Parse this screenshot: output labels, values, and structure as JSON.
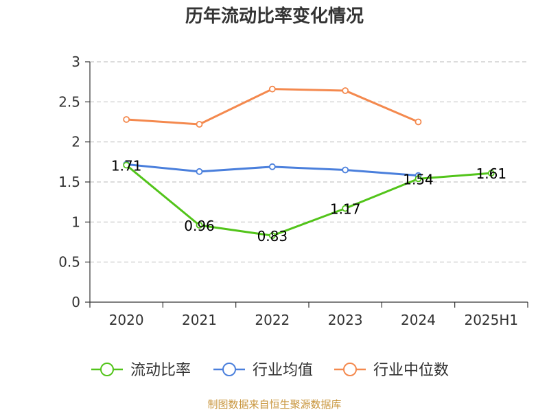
{
  "chart_data": {
    "type": "line",
    "title": "历年流动比率变化情况",
    "categories": [
      "2020",
      "2021",
      "2022",
      "2023",
      "2024",
      "2025H1"
    ],
    "ylim": [
      0,
      3
    ],
    "yticks": [
      "0",
      "0.5",
      "1",
      "1.5",
      "2",
      "2.5",
      "3"
    ],
    "grid": true,
    "legend_position": "bottom",
    "series": [
      {
        "name": "流动比率",
        "color": "#52c41a",
        "values": [
          1.71,
          0.96,
          0.83,
          1.17,
          1.54,
          1.61
        ],
        "labels": [
          "1.71",
          "0.96",
          "0.83",
          "1.17",
          "1.54",
          "1.61"
        ]
      },
      {
        "name": "行业均值",
        "color": "#4a7fdc",
        "values": [
          1.72,
          1.63,
          1.69,
          1.65,
          1.58,
          null
        ]
      },
      {
        "name": "行业中位数",
        "color": "#f4894e",
        "values": [
          2.28,
          2.22,
          2.66,
          2.64,
          2.25,
          null
        ]
      }
    ]
  },
  "source": "制图数据来自恒生聚源数据库"
}
